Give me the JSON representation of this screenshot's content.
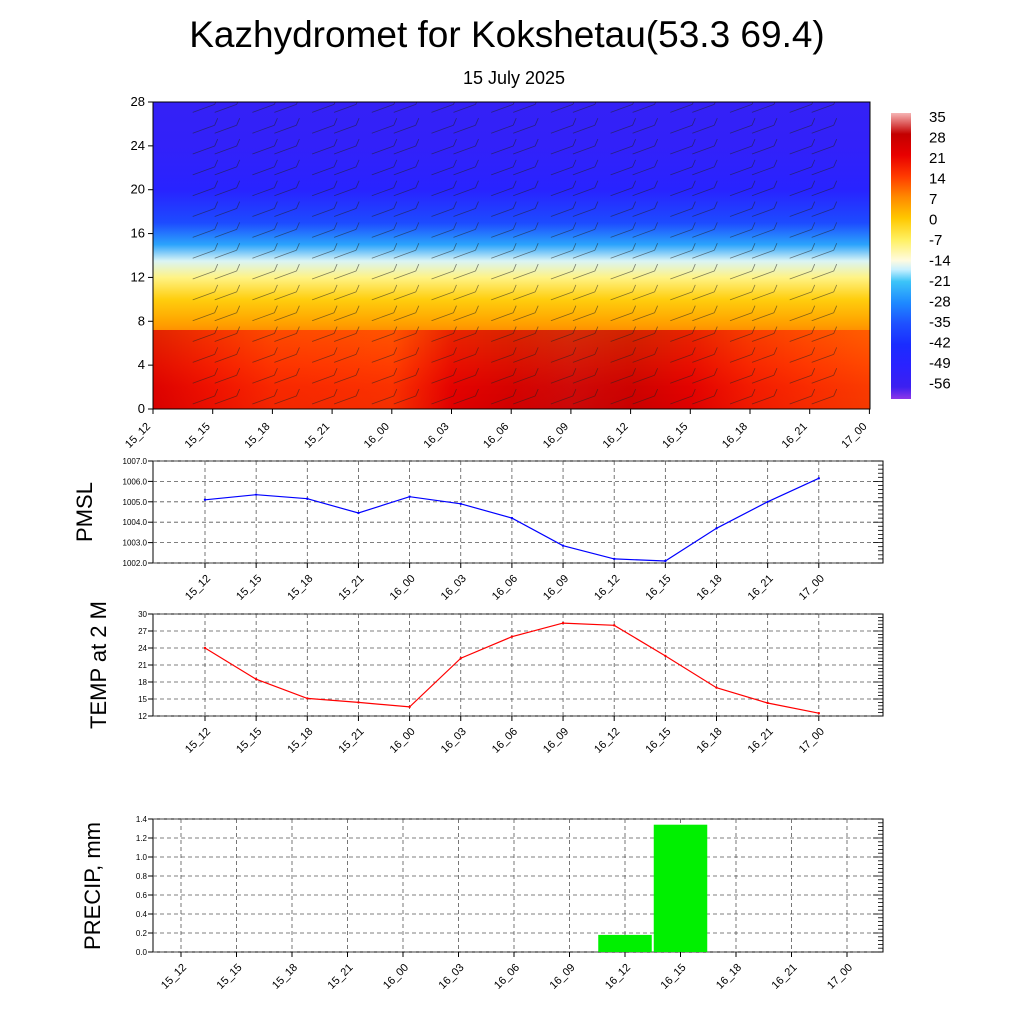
{
  "title": "Kazhydromet for Kokshetau(53.3 69.4)",
  "subtitle": "15 July 2025",
  "time_labels": [
    "15_12",
    "15_15",
    "15_18",
    "15_21",
    "16_00",
    "16_03",
    "16_06",
    "16_09",
    "16_12",
    "16_15",
    "16_18",
    "16_21",
    "17_00"
  ],
  "chart_data": [
    {
      "type": "heatmap",
      "variable": "temperature cross-section",
      "x": [
        "15_12",
        "15_15",
        "15_18",
        "15_21",
        "16_00",
        "16_03",
        "16_06",
        "16_09",
        "16_12",
        "16_15",
        "16_18",
        "16_21",
        "17_00"
      ],
      "y_ticks": [
        "0",
        "4",
        "8",
        "12",
        "16",
        "20",
        "24",
        "28"
      ],
      "ylim": [
        0,
        28
      ],
      "colorbar": {
        "labels": [
          "35",
          "28",
          "21",
          "14",
          "7",
          "0",
          "-7",
          "-14",
          "-21",
          "-28",
          "-35",
          "-42",
          "-49",
          "-56"
        ],
        "stops": [
          {
            "value": 35,
            "color": "#f6b5b5"
          },
          {
            "value": 28,
            "color": "#c30000"
          },
          {
            "value": 21,
            "color": "#e80000"
          },
          {
            "value": 14,
            "color": "#ff3a00"
          },
          {
            "value": 7,
            "color": "#ff8a00"
          },
          {
            "value": 0,
            "color": "#ffc800"
          },
          {
            "value": -7,
            "color": "#fff060"
          },
          {
            "value": -14,
            "color": "#fffbe0"
          },
          {
            "value": -17,
            "color": "#c8f0ff"
          },
          {
            "value": -21,
            "color": "#3cc4f8"
          },
          {
            "value": -28,
            "color": "#1e8aff"
          },
          {
            "value": -35,
            "color": "#1e50ff"
          },
          {
            "value": -42,
            "color": "#1a2cff"
          },
          {
            "value": -49,
            "color": "#2a22ff"
          },
          {
            "value": -56,
            "color": "#3c20f0"
          },
          {
            "value": -60,
            "color": "#8e36e8"
          }
        ]
      },
      "profile": [
        {
          "level": 0,
          "temp": 24
        },
        {
          "level": 2,
          "temp": 20
        },
        {
          "level": 4,
          "temp": 14
        },
        {
          "level": 6,
          "temp": 9
        },
        {
          "level": 8,
          "temp": 4
        },
        {
          "level": 10,
          "temp": -1
        },
        {
          "level": 12,
          "temp": -9
        },
        {
          "level": 13.5,
          "temp": -16
        },
        {
          "level": 15,
          "temp": -25
        },
        {
          "level": 17,
          "temp": -36
        },
        {
          "level": 20,
          "temp": -48
        },
        {
          "level": 24,
          "temp": -52
        },
        {
          "level": 28,
          "temp": -53
        }
      ],
      "surface_temp": [
        24,
        18.5,
        15,
        14.3,
        13.6,
        22.2,
        26,
        28.4,
        28,
        22.5,
        17,
        14.2,
        12.4
      ]
    },
    {
      "type": "line",
      "ylabel": "PMSL",
      "x": [
        "15_12",
        "15_15",
        "15_18",
        "15_21",
        "16_00",
        "16_03",
        "16_06",
        "16_09",
        "16_12",
        "16_15",
        "16_18",
        "16_21",
        "17_00"
      ],
      "values": [
        1005.1,
        1005.35,
        1005.15,
        1004.45,
        1005.25,
        1004.9,
        1004.2,
        1002.85,
        1002.2,
        1002.1,
        1003.7,
        1005.0,
        1006.15
      ],
      "ylim": [
        1002.0,
        1007.0
      ],
      "y_ticks": [
        "1002.0",
        "1003.0",
        "1004.0",
        "1005.0",
        "1006.0",
        "1007.0"
      ],
      "color": "#0000ff",
      "grid": true
    },
    {
      "type": "line",
      "ylabel": "TEMP at 2 M",
      "x": [
        "15_12",
        "15_15",
        "15_18",
        "15_21",
        "16_00",
        "16_03",
        "16_06",
        "16_09",
        "16_12",
        "16_15",
        "16_18",
        "16_21",
        "17_00"
      ],
      "values": [
        24,
        18.5,
        15.1,
        14.4,
        13.6,
        22.2,
        26,
        28.4,
        28,
        22.6,
        17,
        14.3,
        12.5
      ],
      "ylim": [
        12,
        30
      ],
      "y_ticks": [
        "12",
        "15",
        "18",
        "21",
        "24",
        "27",
        "30"
      ],
      "color": "#ff0000",
      "grid": true
    },
    {
      "type": "bar",
      "ylabel": "PRECIP, mm",
      "x": [
        "15_12",
        "15_15",
        "15_18",
        "15_21",
        "16_00",
        "16_03",
        "16_06",
        "16_09",
        "16_12",
        "16_15",
        "16_18",
        "16_21",
        "17_00"
      ],
      "values": [
        0,
        0,
        0,
        0,
        0,
        0,
        0,
        0,
        0.18,
        1.34,
        0,
        0,
        0
      ],
      "ylim": [
        0,
        1.4
      ],
      "y_ticks": [
        "0.0",
        "0.2",
        "0.4",
        "0.6",
        "0.8",
        "1.0",
        "1.2",
        "1.4"
      ],
      "color": "#00f000",
      "grid": true
    }
  ]
}
